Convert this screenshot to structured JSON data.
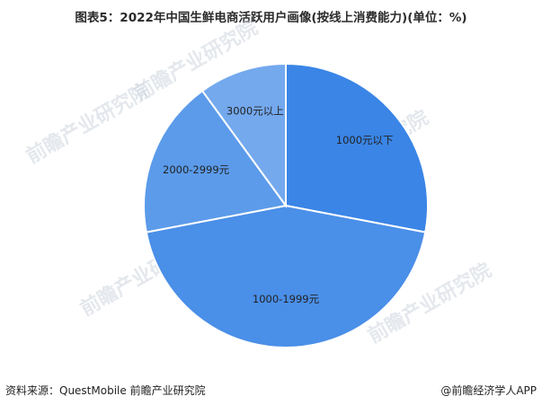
{
  "title": "图表5：2022年中国生鲜电商活跃用户画像(按线上消费能力)(单位：%)",
  "footer": {
    "source": "资料来源：QuestMobile 前瞻产业研究院",
    "brand": "@前瞻经济学人APP"
  },
  "watermark": {
    "text": "前瞻产业研究院"
  },
  "chart_data": {
    "type": "pie",
    "title": "图表5：2022年中国生鲜电商活跃用户画像(按线上消费能力)(单位：%)",
    "unit": "%",
    "start_angle_deg": 0,
    "direction": "clockwise",
    "legend": "none",
    "slices": [
      {
        "label": "1000元以下",
        "value": 28,
        "color": "#3a85e6"
      },
      {
        "label": "1000-1999元",
        "value": 44,
        "color": "#4a8fe8"
      },
      {
        "label": "2000-2999元",
        "value": 18,
        "color": "#5b9bea"
      },
      {
        "label": "3000元以上",
        "value": 10,
        "color": "#74a9ee"
      }
    ]
  }
}
